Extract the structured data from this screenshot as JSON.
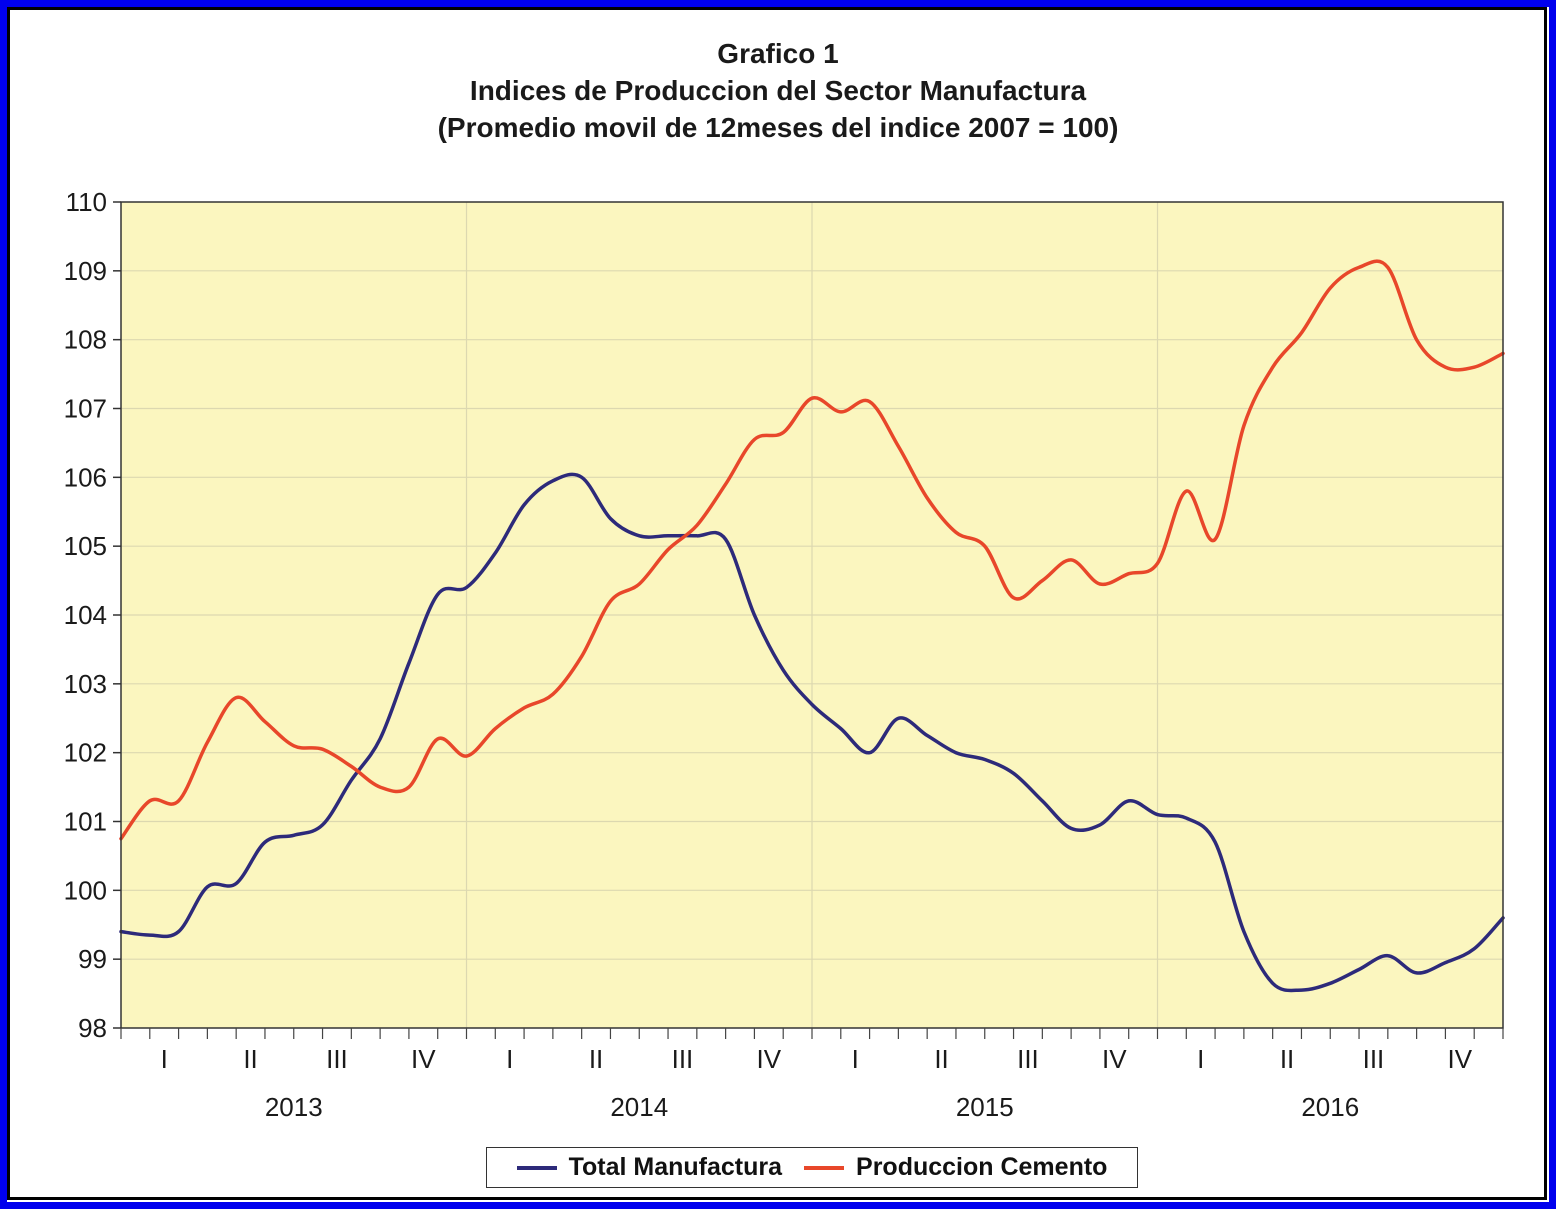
{
  "titles": {
    "line1": "Grafico 1",
    "line2": "Indices de Produccion del Sector Manufactura",
    "line3": "(Promedio movil de 12meses del indice 2007 = 100)"
  },
  "chart_data": {
    "type": "line",
    "title": "Grafico 1 Indices de Produccion del Sector Manufactura (Promedio movil de 12meses del indice 2007 = 100)",
    "ylim": [
      98,
      110
    ],
    "yticks": [
      "98",
      "99",
      "100",
      "101",
      "102",
      "103",
      "104",
      "105",
      "106",
      "107",
      "108",
      "109",
      "110"
    ],
    "xlim": [
      0,
      48
    ],
    "quarter_labels": [
      "I",
      "II",
      "III",
      "IV",
      "I",
      "II",
      "III",
      "IV",
      "I",
      "II",
      "III",
      "IV",
      "I",
      "II",
      "III",
      "IV"
    ],
    "year_labels": [
      "2013",
      "2014",
      "2015",
      "2016"
    ],
    "grid": true,
    "legend_position": "bottom",
    "plot_background": "#fbf6bf",
    "series": [
      {
        "name": "Total Manufactura",
        "color": "#2d2a7a",
        "x": [
          0,
          1,
          2,
          3,
          4,
          5,
          6,
          7,
          8,
          9,
          10,
          11,
          12,
          13,
          14,
          15,
          16,
          17,
          18,
          19,
          20,
          21,
          22,
          23,
          24,
          25,
          26,
          27,
          28,
          29,
          30,
          31,
          32,
          33,
          34,
          35,
          36,
          37,
          38,
          39,
          40,
          41,
          42,
          43,
          44,
          45,
          46,
          47,
          48
        ],
        "values": [
          99.4,
          99.35,
          99.4,
          100.05,
          100.1,
          100.7,
          100.8,
          100.95,
          101.6,
          102.2,
          103.3,
          104.3,
          104.4,
          104.9,
          105.6,
          105.95,
          106.0,
          105.4,
          105.15,
          105.15,
          105.15,
          105.1,
          104.0,
          103.2,
          102.7,
          102.35,
          102.0,
          102.5,
          102.25,
          102.0,
          101.9,
          101.7,
          101.3,
          100.9,
          100.95,
          101.3,
          101.1,
          101.05,
          100.7,
          99.4,
          98.65,
          98.55,
          98.65,
          98.85,
          99.05,
          98.8,
          98.95,
          99.15,
          99.6
        ]
      },
      {
        "name": "Produccion Cemento",
        "color": "#e8472a",
        "x": [
          0,
          1,
          2,
          3,
          4,
          5,
          6,
          7,
          8,
          9,
          10,
          11,
          12,
          13,
          14,
          15,
          16,
          17,
          18,
          19,
          20,
          21,
          22,
          23,
          24,
          25,
          26,
          27,
          28,
          29,
          30,
          31,
          32,
          33,
          34,
          35,
          36,
          37,
          38,
          39,
          40,
          41,
          42,
          43,
          44,
          45,
          46,
          47,
          48
        ],
        "values": [
          100.75,
          101.3,
          101.3,
          102.15,
          102.8,
          102.45,
          102.1,
          102.05,
          101.8,
          101.5,
          101.5,
          102.2,
          101.95,
          102.35,
          102.65,
          102.85,
          103.4,
          104.2,
          104.45,
          104.95,
          105.3,
          105.9,
          106.55,
          106.65,
          107.15,
          106.95,
          107.1,
          106.45,
          105.7,
          105.2,
          105.0,
          104.25,
          104.5,
          104.8,
          104.45,
          104.6,
          104.75,
          105.8,
          105.1,
          106.75,
          107.6,
          108.1,
          108.75,
          109.05,
          109.05,
          108.0,
          107.6,
          107.6,
          107.8
        ]
      }
    ]
  }
}
